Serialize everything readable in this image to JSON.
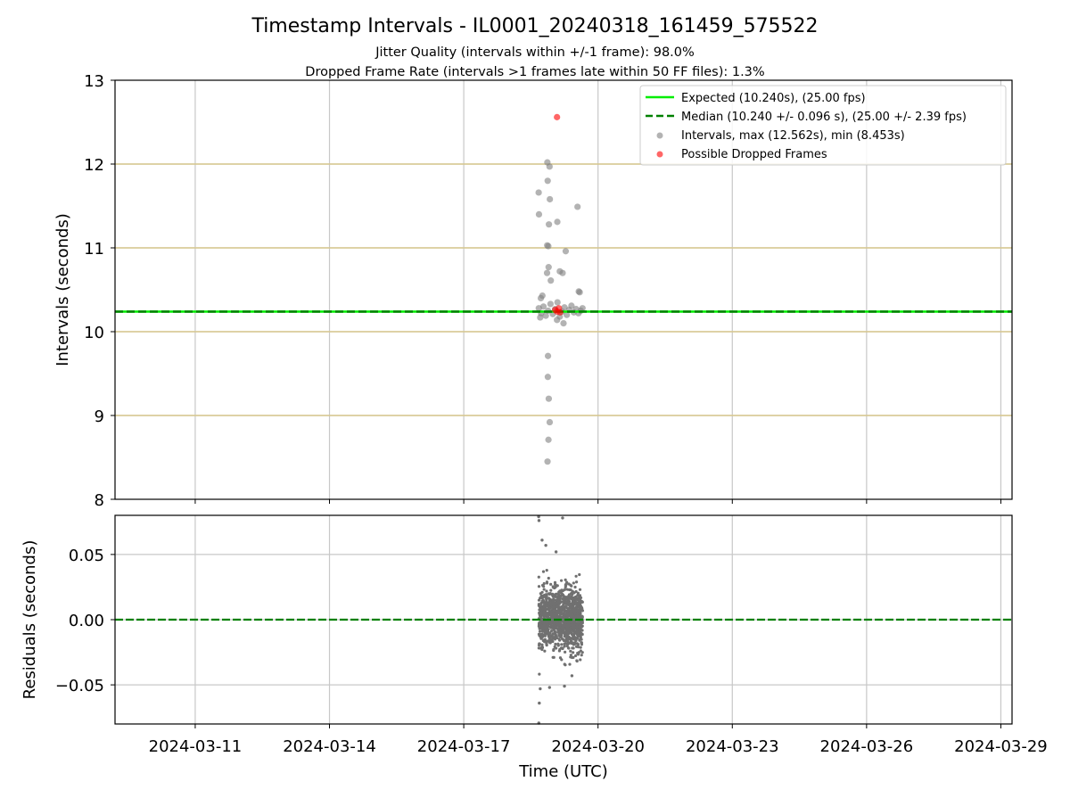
{
  "chart_data": [
    {
      "type": "scatter",
      "panel": "intervals",
      "title": "Timestamp Intervals - IL0001_20240318_161459_575522",
      "subtitle_lines": [
        "Jitter Quality (intervals within +/-1 frame): 98.0%",
        "Dropped Frame Rate (intervals >1 frames late within 50 FF files): 1.3%"
      ],
      "ylabel": "Intervals (seconds)",
      "xlim": [
        "2024-03-09T05:00",
        "2024-03-29T06:00"
      ],
      "ylim": [
        8,
        13
      ],
      "yticks": [
        8,
        9,
        10,
        11,
        12,
        13
      ],
      "frame_lines": [
        9.0,
        10.0,
        11.0,
        12.0
      ],
      "frame_line_color": "#d8c88e",
      "grid": true,
      "legend_position": "top-right",
      "legend": [
        {
          "label": "Expected (10.240s), (25.00 fps)",
          "style": "solid-line",
          "color": "#00ee00"
        },
        {
          "label": "Median (10.240 +/- 0.096 s), (25.00 +/- 2.39 fps)",
          "style": "dashed-line",
          "color": "#008000"
        },
        {
          "label": "Intervals, max (12.562s), min (8.453s)",
          "style": "dot",
          "color": "#808080"
        },
        {
          "label": "Possible Dropped Frames",
          "style": "dot",
          "color": "#ff0000"
        }
      ],
      "expected_interval": 10.24,
      "median_interval": 10.24,
      "series": [
        {
          "name": "Intervals, max (12.562s), min (8.453s)",
          "color": "#808080",
          "points": [
            [
              "2024-03-18T16:15",
              10.28
            ],
            [
              "2024-03-18T17:30",
              10.22
            ],
            [
              "2024-03-18T18:45",
              10.3
            ],
            [
              "2024-03-18T20:00",
              10.19
            ],
            [
              "2024-03-18T21:15",
              10.25
            ],
            [
              "2024-03-18T22:30",
              10.33
            ],
            [
              "2024-03-18T23:45",
              10.21
            ],
            [
              "2024-03-19T01:00",
              10.27
            ],
            [
              "2024-03-19T02:15",
              10.35
            ],
            [
              "2024-03-19T03:30",
              10.18
            ],
            [
              "2024-03-19T04:45",
              10.24
            ],
            [
              "2024-03-19T06:00",
              10.29
            ],
            [
              "2024-03-19T07:15",
              10.2
            ],
            [
              "2024-03-19T08:30",
              10.26
            ],
            [
              "2024-03-19T09:45",
              10.31
            ],
            [
              "2024-03-19T11:00",
              10.23
            ],
            [
              "2024-03-19T12:15",
              10.27
            ],
            [
              "2024-03-19T13:30",
              10.22
            ],
            [
              "2024-03-19T14:45",
              10.25
            ],
            [
              "2024-03-19T15:40",
              10.28
            ],
            [
              "2024-03-18T17:20",
              10.4
            ],
            [
              "2024-03-18T18:10",
              10.43
            ],
            [
              "2024-03-19T14:10",
              10.47
            ],
            [
              "2024-03-19T02:00",
              10.14
            ],
            [
              "2024-03-19T05:30",
              10.1
            ],
            [
              "2024-03-18T17:00",
              10.17
            ],
            [
              "2024-03-18T22:00",
              11.97
            ],
            [
              "2024-03-18T20:50",
              12.02
            ],
            [
              "2024-03-18T21:00",
              11.8
            ],
            [
              "2024-03-18T16:10",
              11.66
            ],
            [
              "2024-03-18T22:10",
              11.58
            ],
            [
              "2024-03-19T13:00",
              11.49
            ],
            [
              "2024-03-18T16:20",
              11.4
            ],
            [
              "2024-03-19T02:10",
              11.31
            ],
            [
              "2024-03-18T21:40",
              11.28
            ],
            [
              "2024-03-18T20:45",
              11.03
            ],
            [
              "2024-03-18T21:20",
              11.02
            ],
            [
              "2024-03-19T06:40",
              10.96
            ],
            [
              "2024-03-18T21:30",
              10.77
            ],
            [
              "2024-03-18T20:40",
              10.7
            ],
            [
              "2024-03-19T03:30",
              10.72
            ],
            [
              "2024-03-19T05:00",
              10.7
            ],
            [
              "2024-03-18T22:40",
              10.61
            ],
            [
              "2024-03-19T13:40",
              10.48
            ],
            [
              "2024-03-18T21:10",
              9.71
            ],
            [
              "2024-03-18T21:05",
              9.46
            ],
            [
              "2024-03-18T21:35",
              9.2
            ],
            [
              "2024-03-18T22:05",
              8.92
            ],
            [
              "2024-03-18T21:25",
              8.71
            ],
            [
              "2024-03-18T20:55",
              8.45
            ]
          ]
        },
        {
          "name": "Possible Dropped Frames",
          "color": "#ff0000",
          "points": [
            [
              "2024-03-19T02:00",
              12.56
            ],
            [
              "2024-03-19T01:00",
              10.26
            ],
            [
              "2024-03-19T02:00",
              10.24
            ],
            [
              "2024-03-19T03:00",
              10.28
            ],
            [
              "2024-03-19T03:40",
              10.23
            ]
          ]
        }
      ]
    },
    {
      "type": "scatter",
      "panel": "residuals",
      "xlabel": "Time (UTC)",
      "ylabel": "Residuals (seconds)",
      "xlim": [
        "2024-03-09T05:00",
        "2024-03-29T06:00"
      ],
      "ylim": [
        -0.08,
        0.08
      ],
      "yticks": [
        -0.05,
        0.0,
        0.05
      ],
      "ytick_labels": [
        "−0.05",
        "0.00",
        "0.05"
      ],
      "xticks": [
        "2024-03-11",
        "2024-03-14",
        "2024-03-17",
        "2024-03-20",
        "2024-03-23",
        "2024-03-26",
        "2024-03-29"
      ],
      "zero_line_color": "#008000",
      "grid": true,
      "series": [
        {
          "name": "Residuals",
          "color": "#707070",
          "x_range": [
            "2024-03-18T16:15",
            "2024-03-19T15:45"
          ],
          "point_count": 1200,
          "spread_sd": 0.012,
          "outliers": [
            [
              "2024-03-18T16:10",
              0.079
            ],
            [
              "2024-03-18T16:20",
              0.076
            ],
            [
              "2024-03-19T05:00",
              0.078
            ],
            [
              "2024-03-18T18:00",
              0.061
            ],
            [
              "2024-03-18T20:00",
              0.057
            ],
            [
              "2024-03-19T01:30",
              0.052
            ],
            [
              "2024-03-18T17:00",
              -0.053
            ],
            [
              "2024-03-18T16:30",
              -0.064
            ],
            [
              "2024-03-18T16:15",
              -0.081
            ],
            [
              "2024-03-19T06:00",
              -0.051
            ],
            [
              "2024-03-19T10:00",
              -0.043
            ],
            [
              "2024-03-18T22:00",
              -0.052
            ]
          ]
        }
      ]
    }
  ]
}
